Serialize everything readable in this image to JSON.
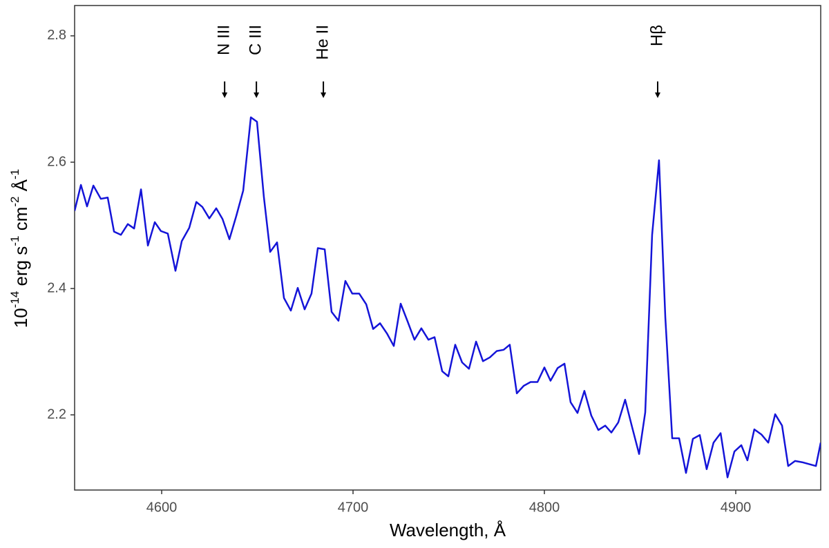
{
  "chart_data": {
    "type": "line",
    "xlabel": "Wavelength, Å",
    "ylabel": [
      "10",
      "-14",
      " erg s",
      "-1",
      " cm",
      "-2",
      " Å",
      "-1"
    ],
    "xlim": [
      4554.5,
      4944.4
    ],
    "ylim": [
      2.081,
      2.848
    ],
    "xticks": [
      4600,
      4700,
      4800,
      4900
    ],
    "yticks": [
      2.2,
      2.4,
      2.6,
      2.8
    ],
    "grid": false,
    "annotations": [
      {
        "text": "N III",
        "x": 4632.9
      },
      {
        "text": "C III",
        "x": 4649.5
      },
      {
        "text": "He II",
        "x": 4684.5
      },
      {
        "text": "Hβ",
        "x": 4859.2
      }
    ],
    "x": [
      4554.5,
      4557.8,
      4561.0,
      4564.3,
      4568.2,
      4571.8,
      4575.1,
      4578.7,
      4582.3,
      4585.6,
      4589.2,
      4592.8,
      4596.4,
      4599.6,
      4603.2,
      4607.2,
      4610.5,
      4614.4,
      4618.1,
      4621.3,
      4624.9,
      4628.5,
      4631.8,
      4635.4,
      4639.0,
      4642.6,
      4646.6,
      4649.8,
      4653.4,
      4656.7,
      4660.3,
      4663.9,
      4667.5,
      4671.1,
      4674.7,
      4678.3,
      4681.6,
      4685.2,
      4688.8,
      4692.4,
      4696.0,
      4699.6,
      4703.2,
      4706.9,
      4710.5,
      4714.1,
      4717.7,
      4721.3,
      4724.9,
      4728.5,
      4732.1,
      4735.7,
      4739.4,
      4742.6,
      4746.6,
      4749.8,
      4753.4,
      4757.0,
      4760.6,
      4764.3,
      4767.9,
      4771.5,
      4775.1,
      4778.7,
      4781.9,
      4785.6,
      4789.2,
      4792.8,
      4796.4,
      4800.0,
      4803.2,
      4806.9,
      4810.5,
      4813.7,
      4817.3,
      4820.9,
      4824.5,
      4828.2,
      4831.8,
      4835.0,
      4838.6,
      4842.2,
      4845.8,
      4849.5,
      4852.7,
      4856.3,
      4859.9,
      4863.2,
      4866.8,
      4870.4,
      4874.0,
      4877.6,
      4881.2,
      4884.8,
      4888.4,
      4892.1,
      4895.7,
      4899.3,
      4902.9,
      4906.1,
      4909.7,
      4913.4,
      4917.0,
      4920.6,
      4924.2,
      4927.4,
      4931.0,
      4934.7,
      4938.3,
      4941.9,
      4944.4
    ],
    "series": [
      {
        "color": "#1414d8",
        "values": [
          2.523,
          2.564,
          2.53,
          2.563,
          2.542,
          2.544,
          2.49,
          2.485,
          2.502,
          2.495,
          2.557,
          2.468,
          2.505,
          2.491,
          2.487,
          2.428,
          2.475,
          2.496,
          2.537,
          2.529,
          2.511,
          2.527,
          2.51,
          2.478,
          2.515,
          2.555,
          2.671,
          2.664,
          2.545,
          2.458,
          2.473,
          2.385,
          2.365,
          2.401,
          2.367,
          2.392,
          2.464,
          2.462,
          2.363,
          2.349,
          2.412,
          2.392,
          2.392,
          2.375,
          2.336,
          2.345,
          2.329,
          2.309,
          2.376,
          2.348,
          2.319,
          2.337,
          2.319,
          2.323,
          2.269,
          2.261,
          2.311,
          2.283,
          2.273,
          2.316,
          2.285,
          2.291,
          2.301,
          2.303,
          2.311,
          2.234,
          2.246,
          2.252,
          2.252,
          2.275,
          2.254,
          2.274,
          2.281,
          2.22,
          2.203,
          2.238,
          2.199,
          2.176,
          2.183,
          2.172,
          2.188,
          2.224,
          2.181,
          2.138,
          2.204,
          2.485,
          2.603,
          2.354,
          2.163,
          2.163,
          2.108,
          2.162,
          2.168,
          2.114,
          2.156,
          2.171,
          2.101,
          2.142,
          2.152,
          2.128,
          2.177,
          2.169,
          2.156,
          2.201,
          2.183,
          2.119,
          2.127,
          2.125,
          2.122,
          2.119,
          2.156
        ]
      }
    ]
  }
}
